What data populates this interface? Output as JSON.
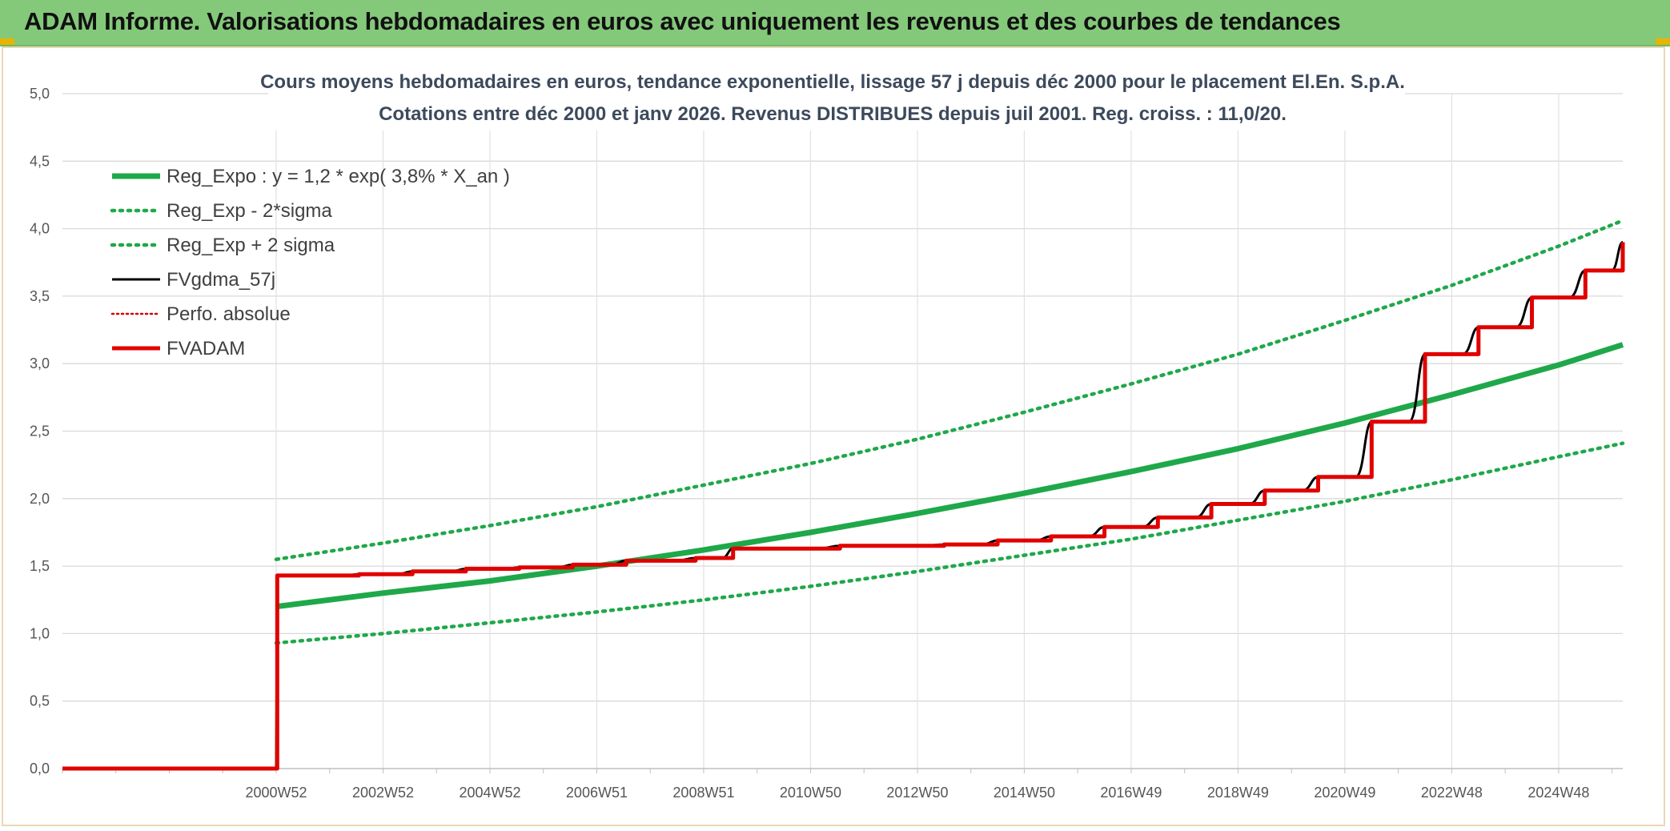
{
  "banner": {
    "title": "ADAM Informe. Valorisations hebdomadaires en euros avec uniquement les revenus et des courbes de tendances",
    "background": "#84c97a"
  },
  "chart_data": {
    "type": "line",
    "title": "Cours moyens hebdomadaires en euros, tendance exponentielle, lissage 57 j depuis déc 2000 pour le placement El.En. S.p.A.",
    "subtitle": "Cotations entre déc 2000 et janv 2026. Revenus DISTRIBUES depuis juil 2001. Reg. croiss. : 11,0/20.",
    "xlabel": "",
    "ylabel": "",
    "ylim": [
      0,
      5
    ],
    "xlim": [
      1996.0,
      2025.2
    ],
    "grid": true,
    "legend_position": "top-left",
    "y_ticks": [
      "0,0",
      "0,5",
      "1,0",
      "1,5",
      "2,0",
      "2,5",
      "3,0",
      "3,5",
      "4,0",
      "4,5",
      "5,0"
    ],
    "x_ticks": [
      {
        "label": "2000W52",
        "x": 2000
      },
      {
        "label": "2002W52",
        "x": 2002
      },
      {
        "label": "2004W52",
        "x": 2004
      },
      {
        "label": "2006W51",
        "x": 2006
      },
      {
        "label": "2008W51",
        "x": 2008
      },
      {
        "label": "2010W50",
        "x": 2010
      },
      {
        "label": "2012W50",
        "x": 2012
      },
      {
        "label": "2014W50",
        "x": 2014
      },
      {
        "label": "2016W49",
        "x": 2016
      },
      {
        "label": "2018W49",
        "x": 2018
      },
      {
        "label": "2020W49",
        "x": 2020
      },
      {
        "label": "2022W48",
        "x": 2022
      },
      {
        "label": "2024W48",
        "x": 2024
      }
    ],
    "series": [
      {
        "name": "Reg_Expo : y = 1,2 * exp( 3,8% *  X_an )",
        "color": "#1fa84a",
        "style": "solid",
        "x": [
          2000,
          2002,
          2004,
          2006,
          2008,
          2010,
          2012,
          2014,
          2016,
          2018,
          2020,
          2022,
          2024,
          2025.2
        ],
        "values": [
          1.2,
          1.3,
          1.39,
          1.5,
          1.62,
          1.75,
          1.89,
          2.04,
          2.2,
          2.37,
          2.56,
          2.77,
          2.99,
          3.14
        ]
      },
      {
        "name": "Reg_Exp - 2*sigma",
        "color": "#1fa84a",
        "style": "dotted",
        "x": [
          2000,
          2002,
          2004,
          2006,
          2008,
          2010,
          2012,
          2014,
          2016,
          2018,
          2020,
          2022,
          2024,
          2025.2
        ],
        "values": [
          0.93,
          1.0,
          1.08,
          1.16,
          1.25,
          1.35,
          1.46,
          1.58,
          1.7,
          1.84,
          1.98,
          2.14,
          2.31,
          2.41
        ]
      },
      {
        "name": "Reg_Exp + 2 sigma",
        "color": "#1fa84a",
        "style": "dotted",
        "x": [
          2000,
          2002,
          2004,
          2006,
          2008,
          2010,
          2012,
          2014,
          2016,
          2018,
          2020,
          2022,
          2024,
          2025.2
        ],
        "values": [
          1.55,
          1.67,
          1.8,
          1.94,
          2.1,
          2.26,
          2.44,
          2.64,
          2.85,
          3.07,
          3.32,
          3.58,
          3.87,
          4.06
        ]
      },
      {
        "name": "FVgdma_57j",
        "color": "#000000",
        "style": "smooth",
        "x": [
          1996.0,
          2000.0,
          2000.02,
          2000.55,
          2001.55,
          2002.55,
          2003.55,
          2004.55,
          2005.55,
          2006.55,
          2007.85,
          2008.55,
          2010.55,
          2012.5,
          2013.5,
          2014.5,
          2015.5,
          2016.5,
          2017.5,
          2018.5,
          2019.5,
          2020.5,
          2021.5,
          2022.5,
          2023.5,
          2024.5,
          2025.2
        ],
        "values": [
          0,
          0,
          1.43,
          1.43,
          1.44,
          1.46,
          1.48,
          1.49,
          1.51,
          1.54,
          1.56,
          1.63,
          1.65,
          1.66,
          1.69,
          1.72,
          1.79,
          1.86,
          1.96,
          2.06,
          2.16,
          2.57,
          3.07,
          3.27,
          3.49,
          3.69,
          3.9
        ]
      },
      {
        "name": "Perfo. absolue",
        "color": "#d40000",
        "style": "dotted",
        "x": [],
        "values": []
      },
      {
        "name": "FVADAM",
        "color": "#e00000",
        "style": "step",
        "x": [
          1996.0,
          2000.0,
          2000.02,
          2000.55,
          2001.55,
          2002.55,
          2003.55,
          2004.55,
          2005.55,
          2006.55,
          2007.85,
          2008.55,
          2010.55,
          2012.5,
          2013.5,
          2014.5,
          2015.5,
          2016.5,
          2017.5,
          2018.5,
          2019.5,
          2020.5,
          2021.5,
          2022.5,
          2023.5,
          2024.5,
          2025.2
        ],
        "values": [
          0,
          0,
          1.43,
          1.43,
          1.44,
          1.46,
          1.48,
          1.49,
          1.51,
          1.54,
          1.56,
          1.63,
          1.65,
          1.66,
          1.69,
          1.72,
          1.79,
          1.86,
          1.96,
          2.06,
          2.16,
          2.57,
          3.07,
          3.27,
          3.49,
          3.69,
          3.9
        ]
      }
    ]
  }
}
